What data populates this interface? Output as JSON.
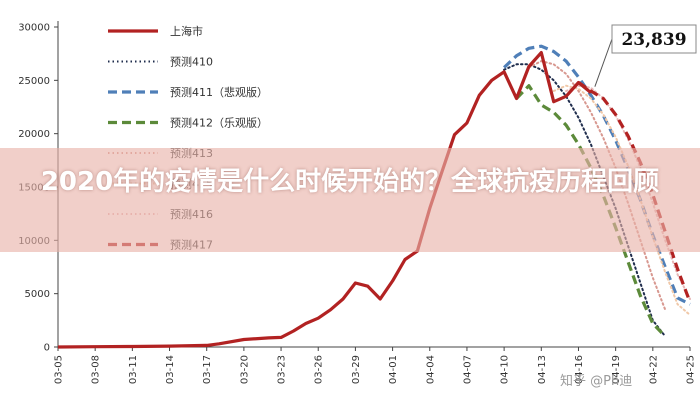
{
  "banner_title": "2020年的疫情是什么时候开始的？全球抗疫历程回顾",
  "watermark": "知乎 @Ph迪",
  "chart_data": {
    "type": "line",
    "title": "",
    "xlabel": "",
    "ylabel": "",
    "ylim": [
      0,
      30000
    ],
    "yticks": [
      0,
      5000,
      10000,
      15000,
      20000,
      25000,
      30000
    ],
    "xticks": [
      "03-05",
      "03-08",
      "03-11",
      "03-14",
      "03-17",
      "03-20",
      "03-23",
      "03-26",
      "03-29",
      "04-01",
      "04-04",
      "04-07",
      "04-10",
      "04-13",
      "04-16",
      "04-19",
      "04-22",
      "04-25"
    ],
    "x_range": [
      "03-05",
      "04-25"
    ],
    "callout": "23,839",
    "grid": false,
    "legend_position": "top-left",
    "series": [
      {
        "name": "上海市",
        "color": "#b22222",
        "style": "solid",
        "points": [
          [
            "03-05",
            0
          ],
          [
            "03-08",
            30
          ],
          [
            "03-11",
            50
          ],
          [
            "03-14",
            80
          ],
          [
            "03-17",
            150
          ],
          [
            "03-18",
            300
          ],
          [
            "03-20",
            700
          ],
          [
            "03-22",
            850
          ],
          [
            "03-23",
            900
          ],
          [
            "03-24",
            1500
          ],
          [
            "03-25",
            2200
          ],
          [
            "03-26",
            2700
          ],
          [
            "03-27",
            3500
          ],
          [
            "03-28",
            4500
          ],
          [
            "03-29",
            6000
          ],
          [
            "03-30",
            5700
          ],
          [
            "03-31",
            4500
          ],
          [
            "04-01",
            6200
          ],
          [
            "04-02",
            8200
          ],
          [
            "04-03",
            9000
          ],
          [
            "04-04",
            13000
          ],
          [
            "04-05",
            16500
          ],
          [
            "04-06",
            19900
          ],
          [
            "04-07",
            21000
          ],
          [
            "04-08",
            23600
          ],
          [
            "04-09",
            25000
          ],
          [
            "04-10",
            25800
          ],
          [
            "04-11",
            23300
          ],
          [
            "04-12",
            26300
          ],
          [
            "04-13",
            27600
          ],
          [
            "04-14",
            23000
          ],
          [
            "04-15",
            23500
          ],
          [
            "04-16",
            24800
          ],
          [
            "04-17",
            23839
          ]
        ]
      },
      {
        "name": "预测410",
        "color": "#1f2d4d",
        "style": "dotted",
        "points": [
          [
            "04-10",
            26000
          ],
          [
            "04-11",
            26500
          ],
          [
            "04-12",
            26500
          ],
          [
            "04-13",
            26000
          ],
          [
            "04-14",
            25000
          ],
          [
            "04-15",
            23500
          ],
          [
            "04-16",
            21500
          ],
          [
            "04-17",
            19000
          ],
          [
            "04-18",
            16000
          ],
          [
            "04-19",
            13000
          ],
          [
            "04-20",
            9500
          ],
          [
            "04-21",
            6000
          ],
          [
            "04-22",
            2500
          ],
          [
            "04-23",
            1000
          ]
        ]
      },
      {
        "name": "预测411（悲观版）",
        "color": "#4f7fb8",
        "style": "dashed",
        "points": [
          [
            "04-10",
            26200
          ],
          [
            "04-11",
            27300
          ],
          [
            "04-12",
            28000
          ],
          [
            "04-13",
            28200
          ],
          [
            "04-14",
            27700
          ],
          [
            "04-15",
            26800
          ],
          [
            "04-16",
            25300
          ],
          [
            "04-17",
            23600
          ],
          [
            "04-18",
            21700
          ],
          [
            "04-19",
            19400
          ],
          [
            "04-20",
            16700
          ],
          [
            "04-21",
            13800
          ],
          [
            "04-22",
            10500
          ],
          [
            "04-23",
            7500
          ],
          [
            "04-24",
            4600
          ],
          [
            "04-25",
            4000
          ]
        ]
      },
      {
        "name": "预测412（乐观版）",
        "color": "#5c8a3a",
        "style": "dashed",
        "points": [
          [
            "04-11",
            23300
          ],
          [
            "04-12",
            24500
          ],
          [
            "04-13",
            22700
          ],
          [
            "04-14",
            22000
          ],
          [
            "04-15",
            20800
          ],
          [
            "04-16",
            19000
          ],
          [
            "04-17",
            16800
          ],
          [
            "04-18",
            14200
          ],
          [
            "04-19",
            11200
          ],
          [
            "04-20",
            8000
          ],
          [
            "04-21",
            4800
          ],
          [
            "04-22",
            2200
          ],
          [
            "04-23",
            1000
          ]
        ]
      },
      {
        "name": "预测413",
        "color": "#d89890",
        "style": "dotted",
        "points": [
          [
            "04-12",
            26200
          ],
          [
            "04-13",
            26800
          ],
          [
            "04-14",
            26500
          ],
          [
            "04-15",
            25600
          ],
          [
            "04-16",
            24000
          ],
          [
            "04-17",
            22000
          ],
          [
            "04-18",
            19600
          ],
          [
            "04-19",
            16800
          ],
          [
            "04-20",
            13500
          ],
          [
            "04-21",
            10000
          ],
          [
            "04-22",
            6500
          ],
          [
            "04-23",
            3500
          ]
        ]
      },
      {
        "name": "预测415",
        "color": "#f0c8a8",
        "style": "dotted",
        "points": [
          [
            "04-14",
            24000
          ],
          [
            "04-15",
            24500
          ],
          [
            "04-16",
            24200
          ],
          [
            "04-17",
            23300
          ],
          [
            "04-18",
            21800
          ],
          [
            "04-19",
            19700
          ],
          [
            "04-20",
            17000
          ],
          [
            "04-21",
            13800
          ],
          [
            "04-22",
            10300
          ],
          [
            "04-23",
            7000
          ],
          [
            "04-24",
            4000
          ],
          [
            "04-25",
            3000
          ]
        ]
      },
      {
        "name": "预测416",
        "color": "#e6b6b6",
        "style": "dotted",
        "points": [
          [
            "04-15",
            24000
          ],
          [
            "04-16",
            24500
          ],
          [
            "04-17",
            24300
          ],
          [
            "04-18",
            23300
          ],
          [
            "04-19",
            21700
          ],
          [
            "04-20",
            19500
          ],
          [
            "04-21",
            16800
          ],
          [
            "04-22",
            13500
          ],
          [
            "04-23",
            10000
          ],
          [
            "04-24",
            6800
          ],
          [
            "04-25",
            4500
          ]
        ]
      },
      {
        "name": "预测417",
        "color": "#b22222",
        "style": "dashed",
        "points": [
          [
            "04-16",
            24800
          ],
          [
            "04-17",
            24000
          ],
          [
            "04-18",
            23300
          ],
          [
            "04-19",
            21800
          ],
          [
            "04-20",
            19800
          ],
          [
            "04-21",
            17300
          ],
          [
            "04-22",
            14300
          ],
          [
            "04-23",
            10800
          ],
          [
            "04-24",
            7300
          ],
          [
            "04-25",
            4200
          ]
        ]
      }
    ]
  }
}
